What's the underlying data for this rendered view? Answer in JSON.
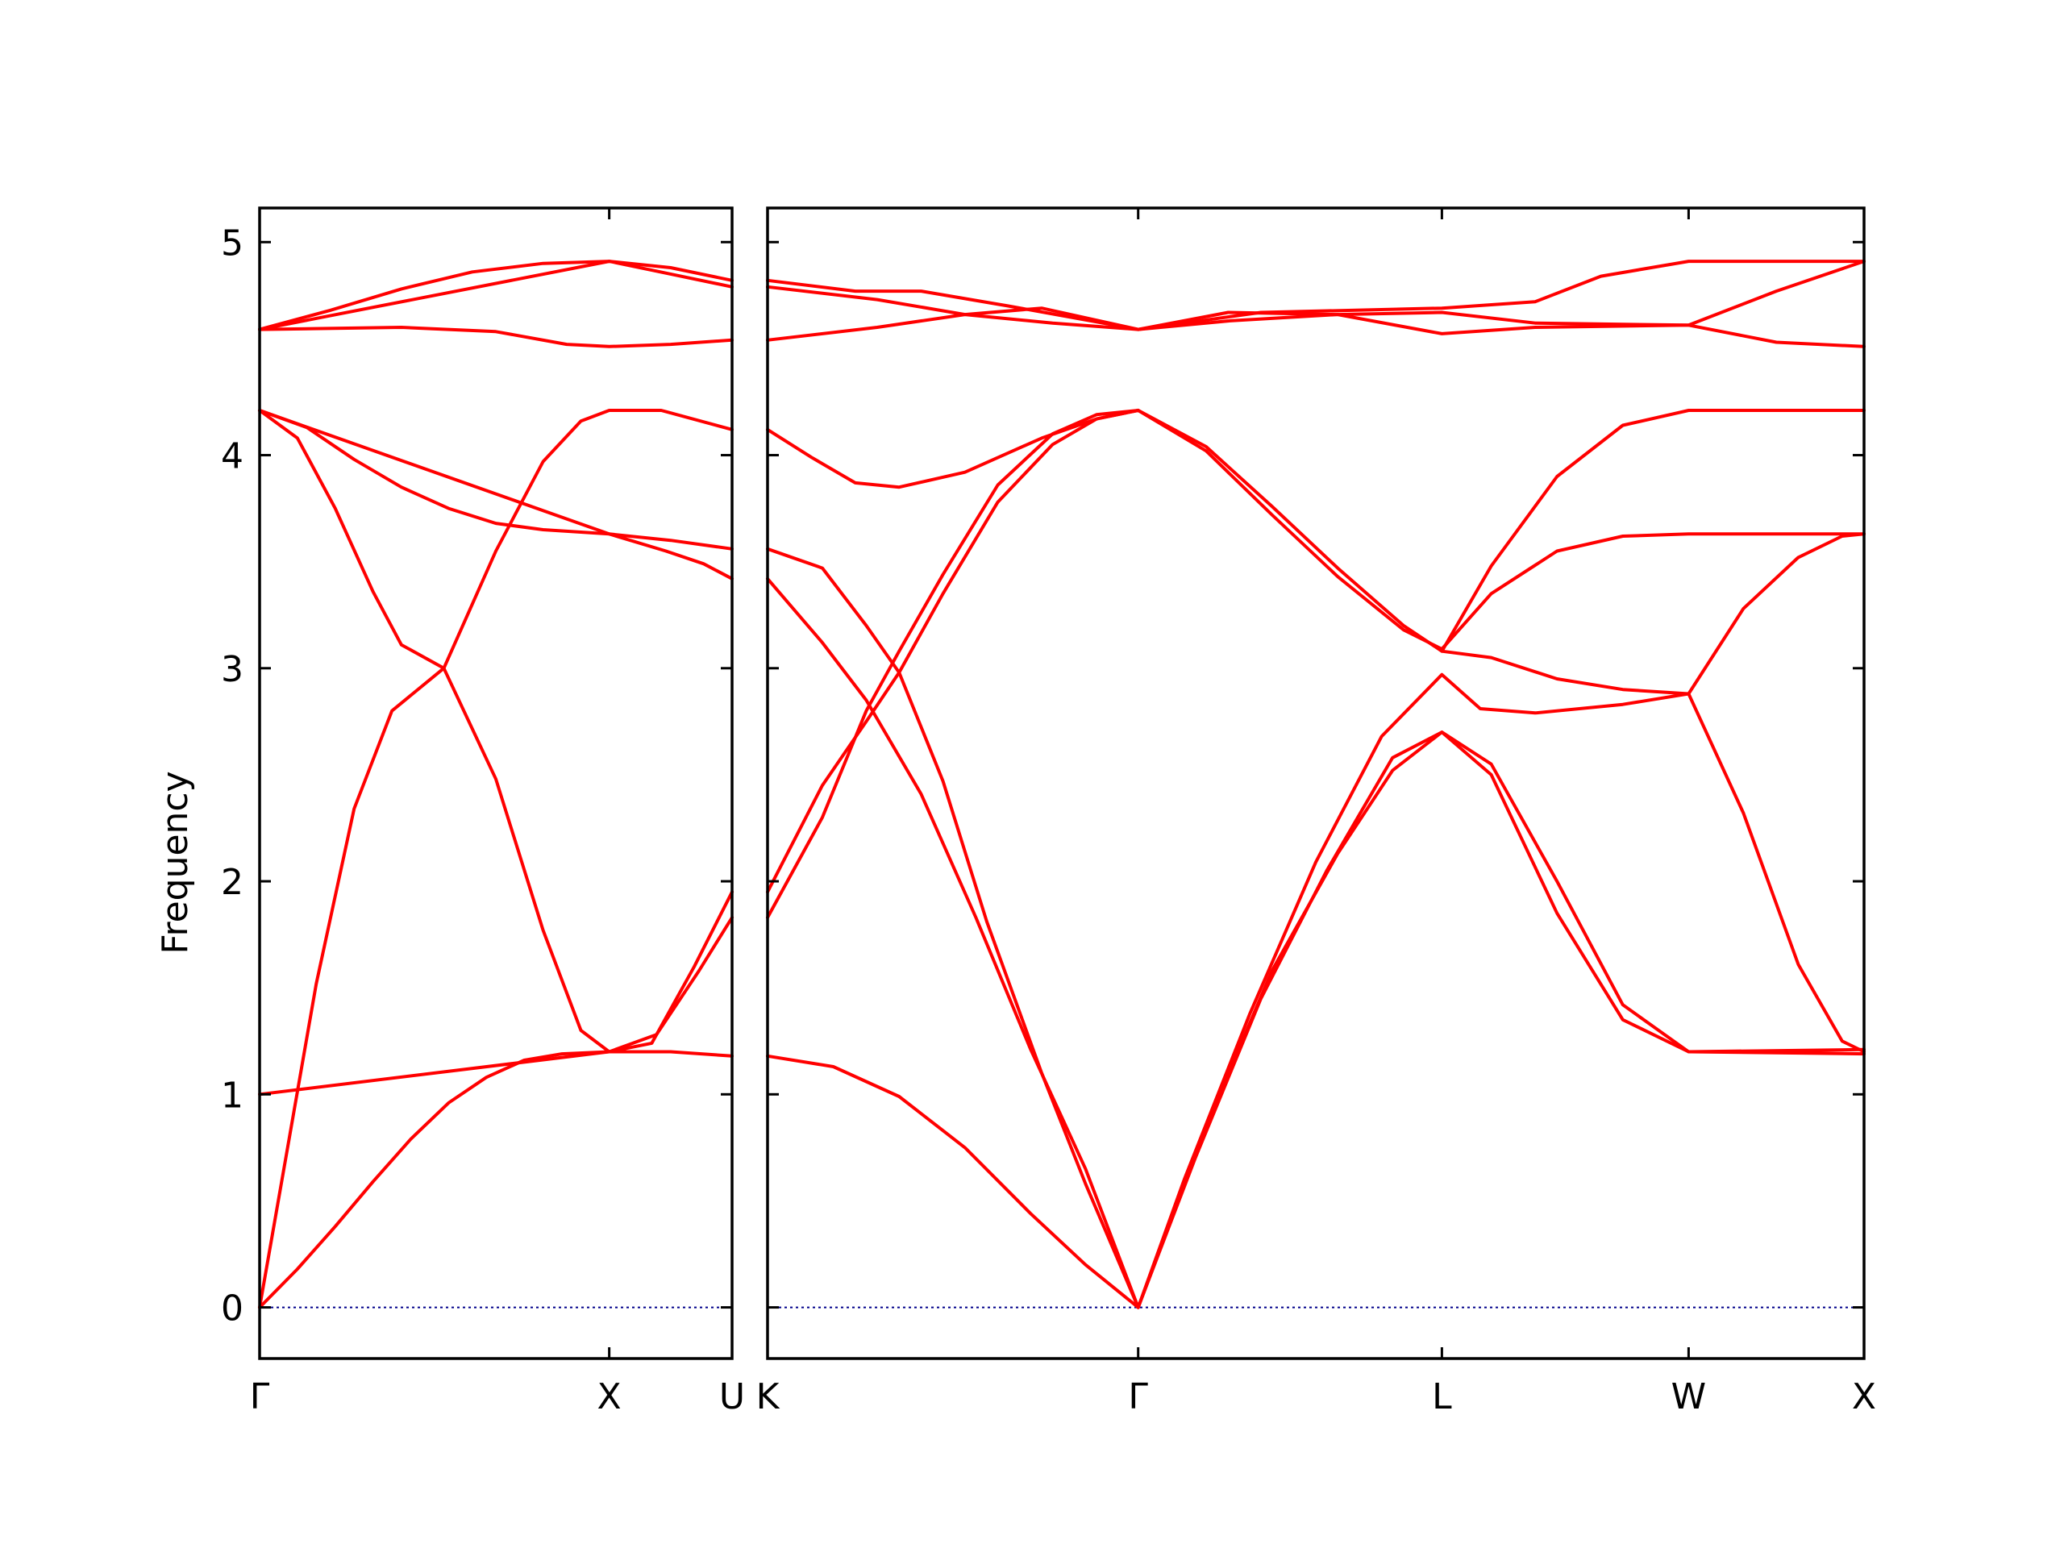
{
  "chart_data": {
    "type": "line",
    "ylabel": "Frequency",
    "ylim": [
      -0.24,
      5.16
    ],
    "yticks": [
      0,
      1,
      2,
      3,
      4,
      5
    ],
    "colors": {
      "bands": "#ff0000",
      "zero_line": "#00008b"
    },
    "panels": [
      {
        "xlim": [
          0,
          1
        ],
        "path_labels": [
          {
            "x": 0.0,
            "label": "Γ"
          },
          {
            "x": 0.74,
            "label": "X"
          },
          {
            "x": 1.0,
            "label": "U"
          }
        ],
        "bands": [
          [
            [
              0,
              0
            ],
            [
              0.08,
              0.18
            ],
            [
              0.16,
              0.38
            ],
            [
              0.24,
              0.59
            ],
            [
              0.32,
              0.79
            ],
            [
              0.4,
              0.96
            ],
            [
              0.48,
              1.08
            ],
            [
              0.56,
              1.16
            ],
            [
              0.64,
              1.19
            ],
            [
              0.74,
              1.2
            ],
            [
              0.87,
              1.2
            ],
            [
              1.0,
              1.18
            ]
          ],
          [
            [
              0,
              0
            ],
            [
              0.06,
              0.76
            ],
            [
              0.12,
              1.52
            ],
            [
              0.2,
              2.34
            ],
            [
              0.28,
              2.8
            ],
            [
              0.39,
              3.0
            ],
            [
              0.5,
              3.55
            ],
            [
              0.6,
              3.97
            ],
            [
              0.68,
              4.16
            ],
            [
              0.74,
              4.21
            ],
            [
              0.85,
              4.21
            ],
            [
              1.0,
              4.12
            ]
          ],
          [
            [
              0,
              4.21
            ],
            [
              0.08,
              4.08
            ],
            [
              0.16,
              3.75
            ],
            [
              0.24,
              3.36
            ],
            [
              0.3,
              3.11
            ],
            [
              0.39,
              3.0
            ],
            [
              0.5,
              2.48
            ],
            [
              0.6,
              1.77
            ],
            [
              0.68,
              1.3
            ],
            [
              0.74,
              1.2
            ],
            [
              0.84,
              1.28
            ],
            [
              0.93,
              1.58
            ],
            [
              1.0,
              1.83
            ]
          ],
          [
            [
              0,
              4.21
            ],
            [
              0.1,
              4.13
            ],
            [
              0.2,
              3.98
            ],
            [
              0.3,
              3.85
            ],
            [
              0.4,
              3.75
            ],
            [
              0.5,
              3.68
            ],
            [
              0.6,
              3.65
            ],
            [
              0.74,
              3.63
            ],
            [
              0.86,
              3.55
            ],
            [
              0.94,
              3.49
            ],
            [
              1.0,
              3.42
            ]
          ],
          [
            [
              0,
              4.21
            ],
            [
              0.74,
              3.63
            ],
            [
              0.87,
              3.6
            ],
            [
              1.0,
              3.56
            ]
          ],
          [
            [
              0,
              1.0
            ],
            [
              0.74,
              1.2
            ],
            [
              0.83,
              1.24
            ],
            [
              0.92,
              1.6
            ],
            [
              1.0,
              1.95
            ]
          ],
          [
            [
              0,
              4.59
            ],
            [
              0.3,
              4.6
            ],
            [
              0.5,
              4.58
            ],
            [
              0.65,
              4.52
            ],
            [
              0.74,
              4.51
            ],
            [
              0.87,
              4.52
            ],
            [
              1.0,
              4.54
            ]
          ],
          [
            [
              0,
              4.59
            ],
            [
              0.15,
              4.68
            ],
            [
              0.3,
              4.78
            ],
            [
              0.45,
              4.86
            ],
            [
              0.6,
              4.9
            ],
            [
              0.74,
              4.91
            ],
            [
              0.87,
              4.88
            ],
            [
              1.0,
              4.82
            ]
          ],
          [
            [
              0,
              4.59
            ],
            [
              0.74,
              4.91
            ],
            [
              0.87,
              4.85
            ],
            [
              1.0,
              4.79
            ]
          ]
        ]
      },
      {
        "xlim": [
          0,
          1
        ],
        "path_labels": [
          {
            "x": 0.0,
            "label": "K"
          },
          {
            "x": 0.338,
            "label": "Γ"
          },
          {
            "x": 0.615,
            "label": "L"
          },
          {
            "x": 0.84,
            "label": "W"
          },
          {
            "x": 1.0,
            "label": "X"
          }
        ],
        "bands": [
          [
            [
              0,
              1.18
            ],
            [
              0.06,
              1.13
            ],
            [
              0.12,
              0.99
            ],
            [
              0.18,
              0.75
            ],
            [
              0.24,
              0.44
            ],
            [
              0.29,
              0.2
            ],
            [
              0.338,
              0
            ]
          ],
          [
            [
              0,
              3.42
            ],
            [
              0.05,
              3.12
            ],
            [
              0.09,
              2.85
            ],
            [
              0.14,
              2.41
            ],
            [
              0.19,
              1.83
            ],
            [
              0.24,
              1.21
            ],
            [
              0.29,
              0.65
            ],
            [
              0.338,
              0
            ]
          ],
          [
            [
              0,
              3.56
            ],
            [
              0.05,
              3.47
            ],
            [
              0.09,
              3.2
            ],
            [
              0.12,
              2.98
            ],
            [
              0.16,
              2.47
            ],
            [
              0.2,
              1.81
            ],
            [
              0.25,
              1.1
            ],
            [
              0.29,
              0.58
            ],
            [
              0.338,
              0
            ]
          ],
          [
            [
              0,
              1.83
            ],
            [
              0.05,
              2.3
            ],
            [
              0.09,
              2.8
            ],
            [
              0.12,
              3.08
            ],
            [
              0.16,
              3.44
            ],
            [
              0.21,
              3.86
            ],
            [
              0.26,
              4.1
            ],
            [
              0.3,
              4.19
            ],
            [
              0.338,
              4.21
            ]
          ],
          [
            [
              0,
              1.95
            ],
            [
              0.05,
              2.45
            ],
            [
              0.09,
              2.75
            ],
            [
              0.12,
              2.98
            ],
            [
              0.16,
              3.35
            ],
            [
              0.21,
              3.78
            ],
            [
              0.26,
              4.05
            ],
            [
              0.3,
              4.17
            ],
            [
              0.338,
              4.21
            ]
          ],
          [
            [
              0,
              4.12
            ],
            [
              0.04,
              3.99
            ],
            [
              0.08,
              3.87
            ],
            [
              0.12,
              3.85
            ],
            [
              0.18,
              3.92
            ],
            [
              0.25,
              4.08
            ],
            [
              0.3,
              4.17
            ],
            [
              0.338,
              4.21
            ]
          ],
          [
            [
              0.338,
              4.21
            ],
            [
              0.4,
              4.04
            ],
            [
              0.46,
              3.76
            ],
            [
              0.52,
              3.47
            ],
            [
              0.58,
              3.2
            ],
            [
              0.615,
              3.08
            ],
            [
              0.66,
              3.05
            ],
            [
              0.72,
              2.95
            ],
            [
              0.78,
              2.9
            ],
            [
              0.84,
              2.88
            ]
          ],
          [
            [
              0.338,
              4.21
            ],
            [
              0.4,
              4.02
            ],
            [
              0.46,
              3.72
            ],
            [
              0.52,
              3.43
            ],
            [
              0.58,
              3.18
            ],
            [
              0.615,
              3.09
            ],
            [
              0.66,
              3.35
            ],
            [
              0.72,
              3.55
            ],
            [
              0.78,
              3.62
            ],
            [
              0.84,
              3.63
            ],
            [
              1.0,
              3.63
            ]
          ],
          [
            [
              0.338,
              0
            ],
            [
              0.4,
              0.85
            ],
            [
              0.46,
              1.58
            ],
            [
              0.52,
              2.13
            ],
            [
              0.57,
              2.52
            ],
            [
              0.615,
              2.7
            ],
            [
              0.66,
              2.55
            ],
            [
              0.72,
              2.0
            ],
            [
              0.78,
              1.42
            ],
            [
              0.84,
              1.2
            ],
            [
              1.0,
              1.21
            ]
          ],
          [
            [
              0.338,
              0
            ],
            [
              0.39,
              0.7
            ],
            [
              0.45,
              1.45
            ],
            [
              0.51,
              2.05
            ],
            [
              0.57,
              2.58
            ],
            [
              0.615,
              2.7
            ],
            [
              0.66,
              2.5
            ],
            [
              0.72,
              1.85
            ],
            [
              0.78,
              1.35
            ],
            [
              0.84,
              1.2
            ],
            [
              1.0,
              1.19
            ]
          ],
          [
            [
              0.338,
              0
            ],
            [
              0.38,
              0.6
            ],
            [
              0.44,
              1.38
            ],
            [
              0.5,
              2.09
            ],
            [
              0.56,
              2.68
            ],
            [
              0.615,
              2.97
            ],
            [
              0.65,
              2.81
            ],
            [
              0.7,
              2.79
            ],
            [
              0.78,
              2.83
            ],
            [
              0.84,
              2.88
            ],
            [
              0.89,
              2.32
            ],
            [
              0.94,
              1.61
            ],
            [
              0.98,
              1.25
            ],
            [
              1.0,
              1.2
            ]
          ],
          [
            [
              0.615,
              3.08
            ],
            [
              0.66,
              3.48
            ],
            [
              0.72,
              3.9
            ],
            [
              0.78,
              4.14
            ],
            [
              0.84,
              4.21
            ],
            [
              1.0,
              4.21
            ]
          ],
          [
            [
              0.84,
              2.88
            ],
            [
              0.89,
              3.28
            ],
            [
              0.94,
              3.52
            ],
            [
              0.98,
              3.62
            ],
            [
              1.0,
              3.63
            ]
          ],
          [
            [
              0,
              4.54
            ],
            [
              0.1,
              4.6
            ],
            [
              0.18,
              4.66
            ],
            [
              0.25,
              4.69
            ],
            [
              0.338,
              4.59
            ],
            [
              0.42,
              4.63
            ],
            [
              0.52,
              4.66
            ],
            [
              0.615,
              4.67
            ],
            [
              0.7,
              4.62
            ],
            [
              0.84,
              4.61
            ],
            [
              0.92,
              4.53
            ],
            [
              1.0,
              4.51
            ]
          ],
          [
            [
              0,
              4.79
            ],
            [
              0.1,
              4.73
            ],
            [
              0.18,
              4.66
            ],
            [
              0.26,
              4.62
            ],
            [
              0.338,
              4.59
            ],
            [
              0.42,
              4.67
            ],
            [
              0.52,
              4.66
            ],
            [
              0.615,
              4.57
            ],
            [
              0.7,
              4.6
            ],
            [
              0.84,
              4.61
            ],
            [
              0.92,
              4.77
            ],
            [
              1.0,
              4.91
            ]
          ],
          [
            [
              0,
              4.82
            ],
            [
              0.08,
              4.77
            ],
            [
              0.14,
              4.77
            ],
            [
              0.22,
              4.7
            ],
            [
              0.338,
              4.59
            ],
            [
              0.45,
              4.67
            ],
            [
              0.615,
              4.69
            ],
            [
              0.7,
              4.72
            ],
            [
              0.76,
              4.84
            ],
            [
              0.84,
              4.91
            ],
            [
              1.0,
              4.91
            ]
          ]
        ]
      }
    ]
  }
}
